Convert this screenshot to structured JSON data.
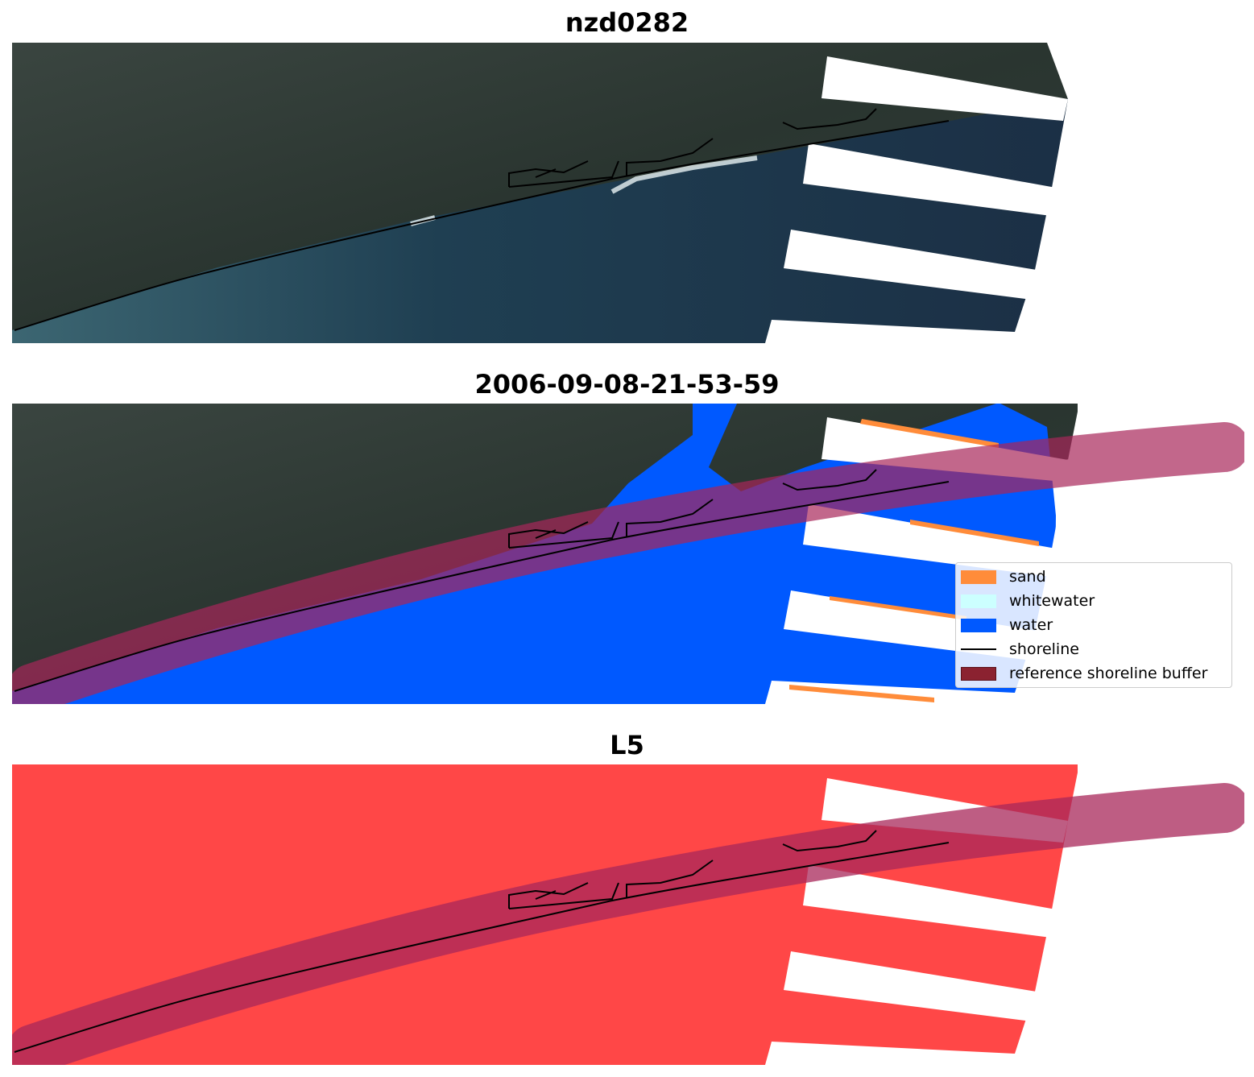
{
  "panels": [
    {
      "title": "nzd0282"
    },
    {
      "title": "2006-09-08-21-53-59"
    },
    {
      "title": "L5"
    }
  ],
  "legend": {
    "items": [
      {
        "label": "sand",
        "color": "#ff8c3a"
      },
      {
        "label": "whitewater",
        "color": "#ccffff"
      },
      {
        "label": "water",
        "color": "#0059ff"
      },
      {
        "label": "shoreline",
        "color": "#000000"
      },
      {
        "label": "reference shoreline buffer",
        "color": "#8b2230"
      }
    ]
  },
  "colors": {
    "land": "#2f3b33",
    "sea": "#223c52",
    "water_class": "#0059ff",
    "mask": "#ff4747",
    "buffer": "#a8275a",
    "shoreline": "#000000"
  }
}
